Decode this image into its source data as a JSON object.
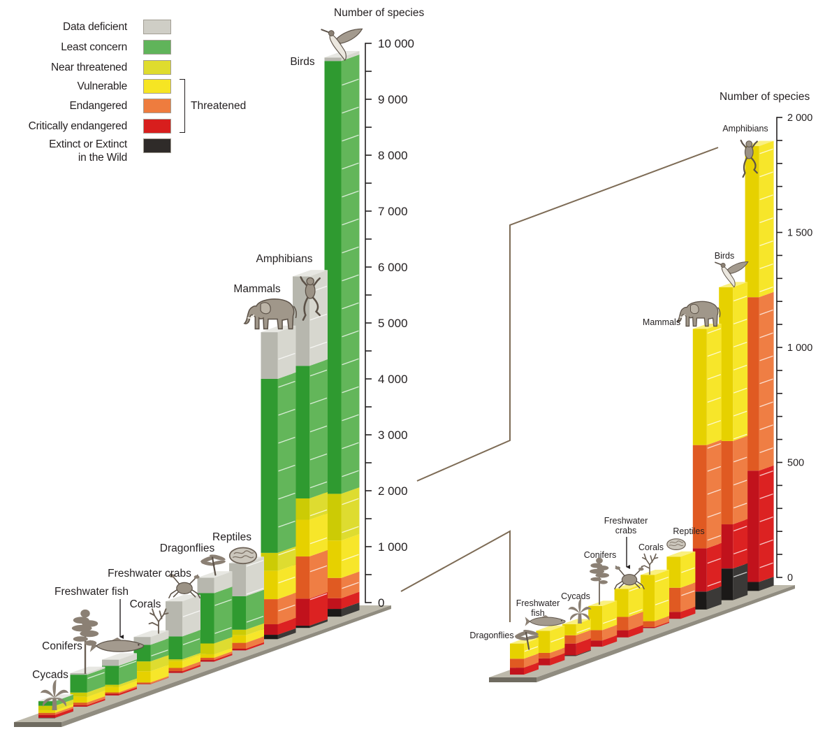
{
  "legend": {
    "items": [
      {
        "key": "dd",
        "label_lines": [
          "Data deficient"
        ],
        "color": "#cfcec6",
        "front_color": "#b7b7ae",
        "side_color": "#d7d7cf"
      },
      {
        "key": "lc",
        "label_lines": [
          "Least concern"
        ],
        "color": "#60b45a",
        "front_color": "#2f9a30",
        "side_color": "#63b65a"
      },
      {
        "key": "nt",
        "label_lines": [
          "Near threatened"
        ],
        "color": "#dfdc2e",
        "front_color": "#cccb05",
        "side_color": "#dedc30"
      },
      {
        "key": "vu",
        "label_lines": [
          "Vulnerable"
        ],
        "color": "#f6e523",
        "front_color": "#e6d100",
        "side_color": "#f7e62a"
      },
      {
        "key": "en",
        "label_lines": [
          "Endangered"
        ],
        "color": "#ee7c3e",
        "front_color": "#e05a22",
        "side_color": "#ef7e44"
      },
      {
        "key": "cr",
        "label_lines": [
          "Critically endangered"
        ],
        "color": "#d81e1d",
        "front_color": "#c1121c",
        "side_color": "#dc2222"
      },
      {
        "key": "ex",
        "label_lines": [
          "Extinct or Extinct",
          "in the Wild"
        ],
        "color": "#2f2b29",
        "front_color": "#1b1918",
        "side_color": "#3b3937"
      }
    ],
    "threatened_label": "Threatened"
  },
  "connector_color": "#7d6b55",
  "chart_data": [
    {
      "type": "bar",
      "variant": "stacked-3d",
      "title": "",
      "xlabel": "",
      "ylabel": "Number of species",
      "ylim": [
        0,
        10000
      ],
      "yticks": [
        0,
        1000,
        2000,
        3000,
        4000,
        5000,
        6000,
        7000,
        8000,
        9000,
        10000
      ],
      "ytick_labels": [
        "0",
        "1 000",
        "2 000",
        "3 000",
        "4 000",
        "5 000",
        "6 000",
        "7 000",
        "8 000",
        "9 000",
        "10 000"
      ],
      "minor_tick_step": 500,
      "grid": false,
      "categories": [
        "Cycads",
        "Conifers",
        "Freshwater fish",
        "Corals",
        "Freshwater crabs",
        "Dragonflies",
        "Reptiles",
        "Mammals",
        "Amphibians",
        "Birds"
      ],
      "category_labels": [
        [
          "Cycads"
        ],
        [
          "Conifers"
        ],
        [
          "Freshwater fish"
        ],
        [
          "Corals"
        ],
        [
          "Freshwater crabs"
        ],
        [
          "Dragonflies"
        ],
        [
          "Reptiles"
        ],
        [
          "Mammals"
        ],
        [
          "Amphibians"
        ],
        [
          "Birds"
        ]
      ],
      "icons": [
        "cycad-icon",
        "conifer-icon",
        "fish-icon",
        "coral-icon",
        "crab-icon",
        "dragonfly-icon",
        "tortoise-icon",
        "elephant-icon",
        "frog-icon",
        "hummingbird-icon"
      ],
      "series": [
        {
          "key": "ex",
          "name": "Extinct or Extinct in the Wild",
          "values": [
            3,
            0,
            0,
            0,
            0,
            0,
            0,
            78,
            39,
            138
          ]
        },
        {
          "key": "cr",
          "name": "Critically endangered",
          "values": [
            51,
            27,
            30,
            5,
            31,
            30,
            30,
            188,
            484,
            192
          ]
        },
        {
          "key": "en",
          "name": "Endangered",
          "values": [
            36,
            45,
            24,
            25,
            58,
            39,
            105,
            449,
            754,
            362
          ]
        },
        {
          "key": "vu",
          "name": "Vulnerable",
          "values": [
            48,
            105,
            96,
            201,
            122,
            66,
            135,
            505,
            657,
            669
          ]
        },
        {
          "key": "nt",
          "name": "Near threatened",
          "values": [
            79,
            75,
            40,
            176,
            32,
            190,
            100,
            323,
            381,
            835
          ]
        },
        {
          "key": "lc",
          "name": "Least concern",
          "values": [
            83,
            320,
            340,
            297,
            410,
            900,
            600,
            3111,
            2371,
            7740
          ]
        },
        {
          "key": "dd",
          "name": "Data deficient",
          "values": [
            5,
            28,
            110,
            141,
            628,
            275,
            590,
            836,
            1599,
            62
          ]
        }
      ]
    },
    {
      "type": "bar",
      "variant": "stacked-3d",
      "title": "",
      "xlabel": "",
      "ylabel": "Number of species",
      "ylim": [
        0,
        2000
      ],
      "yticks": [
        0,
        500,
        1000,
        1500,
        2000
      ],
      "ytick_labels": [
        "0",
        "500",
        "1 000",
        "1 500",
        "2 000"
      ],
      "minor_tick_step": 100,
      "grid": false,
      "categories": [
        "Dragonflies",
        "Freshwater fish",
        "Cycads",
        "Conifers",
        "Freshwater crabs",
        "Corals",
        "Reptiles",
        "Mammals",
        "Birds",
        "Amphibians"
      ],
      "category_labels": [
        [
          "Dragonflies"
        ],
        [
          "Freshwater",
          "fish"
        ],
        [
          "Cycads"
        ],
        [
          "Conifers"
        ],
        [
          "Freshwater",
          "crabs"
        ],
        [
          "Corals"
        ],
        [
          "Reptiles"
        ],
        [
          "Mammals"
        ],
        [
          "Birds"
        ],
        [
          "Amphibians"
        ]
      ],
      "icons": [
        "dragonfly-icon",
        "fish-icon",
        "cycad-icon",
        "conifer-icon",
        "crab-icon",
        "coral-icon",
        "tortoise-icon",
        "elephant-icon",
        "hummingbird-icon",
        "frog-icon"
      ],
      "series": [
        {
          "key": "ex",
          "name": "Extinct or Extinct in the Wild",
          "values": [
            0,
            0,
            3,
            0,
            0,
            0,
            0,
            78,
            138,
            39
          ]
        },
        {
          "key": "cr",
          "name": "Critically endangered",
          "values": [
            30,
            30,
            51,
            27,
            31,
            5,
            30,
            188,
            192,
            484
          ]
        },
        {
          "key": "en",
          "name": "Endangered",
          "values": [
            39,
            24,
            36,
            45,
            58,
            25,
            105,
            449,
            362,
            754
          ]
        },
        {
          "key": "vu",
          "name": "Vulnerable",
          "values": [
            66,
            96,
            48,
            105,
            122,
            201,
            135,
            505,
            669,
            657
          ]
        }
      ]
    }
  ]
}
